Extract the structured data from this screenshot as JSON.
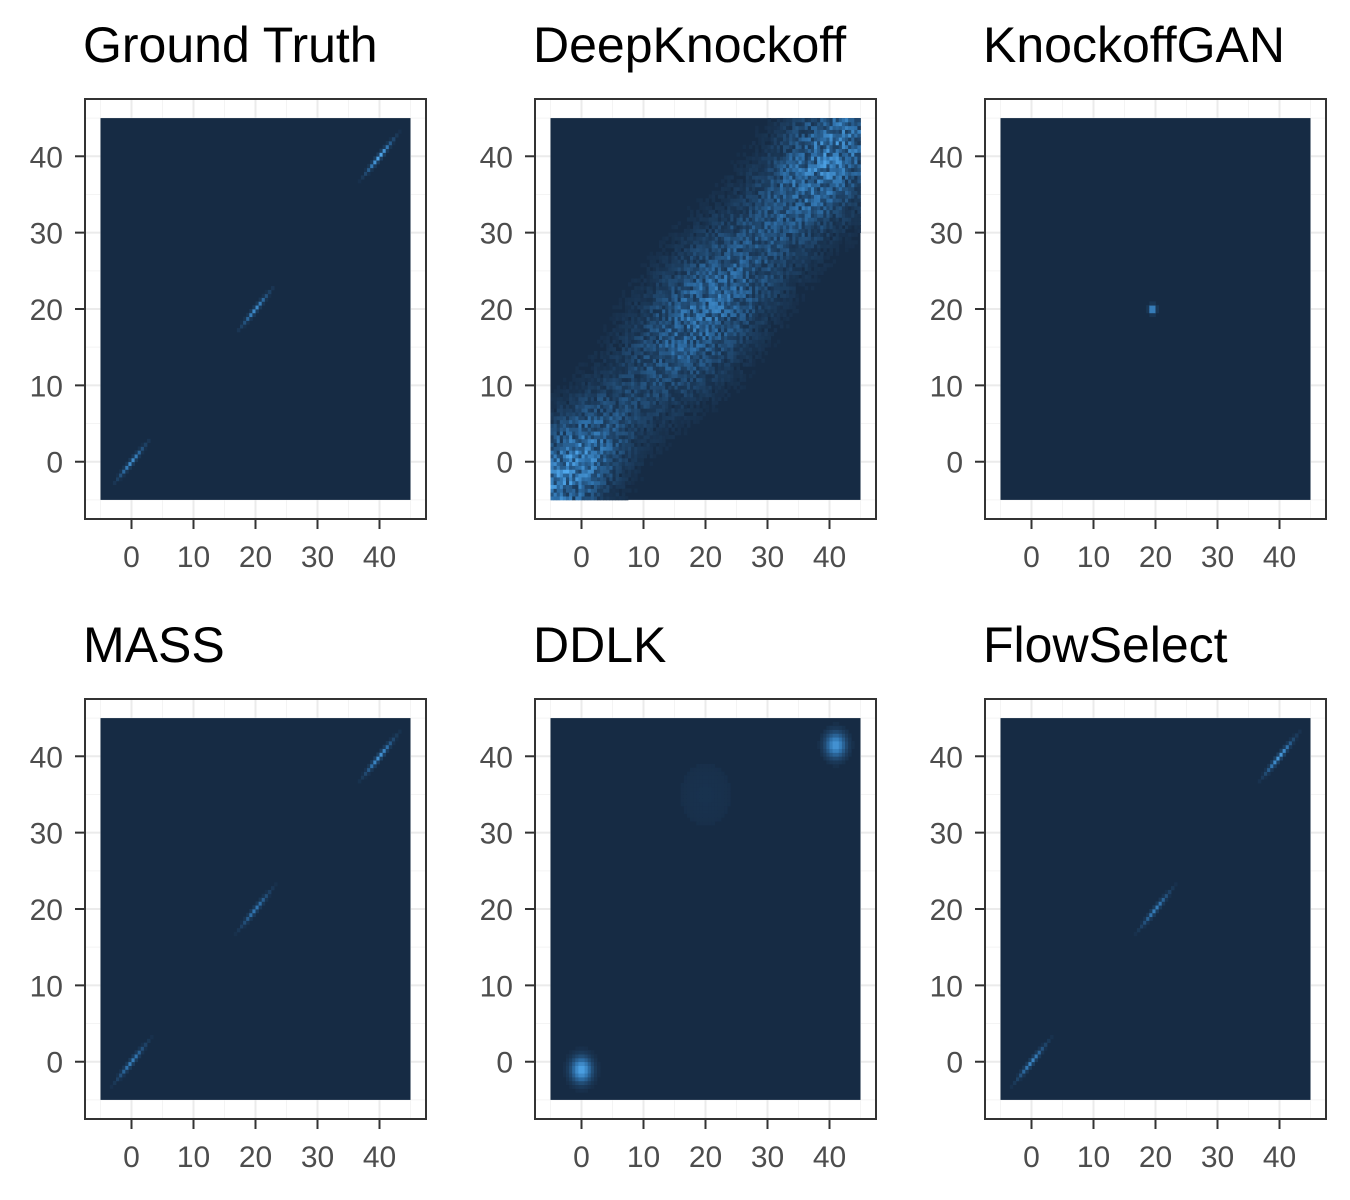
{
  "colors": {
    "background": "#162b44",
    "density_mid": "#2e6fa8",
    "density_high": "#56b1f7",
    "frame": "#333333",
    "grid_major": "#ebebeb",
    "grid_minor": "#f4f4f4",
    "tick_text": "#4d4d4d"
  },
  "chart_data": [
    {
      "type": "heatmap",
      "title": "Ground Truth",
      "xlim": [
        -5,
        45
      ],
      "ylim": [
        -5,
        45
      ],
      "xticks": [
        0,
        10,
        20,
        30,
        40
      ],
      "yticks": [
        0,
        10,
        20,
        30,
        40
      ],
      "xticklabels": [
        "0",
        "10",
        "20",
        "30",
        "40"
      ],
      "yticklabels": [
        "0",
        "10",
        "20",
        "30",
        "40"
      ],
      "grid": true,
      "density_modes": [
        {
          "x": 0,
          "y": 0,
          "sd": 1.3,
          "rho": 0.98,
          "peak": 0.7
        },
        {
          "x": 20,
          "y": 20,
          "sd": 1.3,
          "rho": 0.98,
          "peak": 0.7
        },
        {
          "x": 40,
          "y": 40,
          "sd": 1.3,
          "rho": 0.98,
          "peak": 0.9
        }
      ]
    },
    {
      "type": "heatmap",
      "title": "DeepKnockoff",
      "xlim": [
        -5,
        45
      ],
      "ylim": [
        -5,
        45
      ],
      "xticks": [
        0,
        10,
        20,
        30,
        40
      ],
      "yticks": [
        0,
        10,
        20,
        30,
        40
      ],
      "xticklabels": [
        "0",
        "10",
        "20",
        "30",
        "40"
      ],
      "yticklabels": [
        "0",
        "10",
        "20",
        "30",
        "40"
      ],
      "grid": true,
      "density_modes": [
        {
          "x": -2,
          "y": -1,
          "sd": 5.5,
          "rho": 0.55,
          "peak": 0.55
        },
        {
          "x": 20,
          "y": 20,
          "sd": 8.0,
          "rho": 0.65,
          "peak": 0.4
        },
        {
          "x": 40,
          "y": 40,
          "sd": 6.5,
          "rho": 0.55,
          "peak": 0.5
        }
      ],
      "noise": true
    },
    {
      "type": "heatmap",
      "title": "KnockoffGAN",
      "xlim": [
        -5,
        45
      ],
      "ylim": [
        -5,
        45
      ],
      "xticks": [
        0,
        10,
        20,
        30,
        40
      ],
      "yticks": [
        0,
        10,
        20,
        30,
        40
      ],
      "xticklabels": [
        "0",
        "10",
        "20",
        "30",
        "40"
      ],
      "yticklabels": [
        "0",
        "10",
        "20",
        "30",
        "40"
      ],
      "grid": true,
      "density_modes": [
        {
          "x": 19.5,
          "y": 20,
          "sd": 0.35,
          "rho": 0.0,
          "peak": 1.0
        }
      ]
    },
    {
      "type": "heatmap",
      "title": "MASS",
      "xlim": [
        -5,
        45
      ],
      "ylim": [
        -5,
        45
      ],
      "xticks": [
        0,
        10,
        20,
        30,
        40
      ],
      "yticks": [
        0,
        10,
        20,
        30,
        40
      ],
      "xticklabels": [
        "0",
        "10",
        "20",
        "30",
        "40"
      ],
      "yticklabels": [
        "0",
        "10",
        "20",
        "30",
        "40"
      ],
      "grid": true,
      "density_modes": [
        {
          "x": 0,
          "y": 0,
          "sd": 1.4,
          "rho": 0.98,
          "peak": 0.6
        },
        {
          "x": 20,
          "y": 20,
          "sd": 1.4,
          "rho": 0.98,
          "peak": 0.55
        },
        {
          "x": 40,
          "y": 40,
          "sd": 1.4,
          "rho": 0.98,
          "peak": 0.75
        }
      ]
    },
    {
      "type": "heatmap",
      "title": "DDLK",
      "xlim": [
        -5,
        45
      ],
      "ylim": [
        -5,
        45
      ],
      "xticks": [
        0,
        10,
        20,
        30,
        40
      ],
      "yticks": [
        0,
        10,
        20,
        30,
        40
      ],
      "xticklabels": [
        "0",
        "10",
        "20",
        "30",
        "40"
      ],
      "yticklabels": [
        "0",
        "10",
        "20",
        "30",
        "40"
      ],
      "grid": true,
      "density_modes": [
        {
          "x": 0,
          "y": -1,
          "sd": 1.1,
          "rho": 0.0,
          "peak": 0.9
        },
        {
          "x": 41,
          "y": 41.5,
          "sd": 1.1,
          "rho": 0.0,
          "peak": 0.8
        },
        {
          "x": 20,
          "y": 35,
          "sd": 4.0,
          "rho": 0.0,
          "peak": 0.05
        }
      ]
    },
    {
      "type": "heatmap",
      "title": "FlowSelect",
      "xlim": [
        -5,
        45
      ],
      "ylim": [
        -5,
        45
      ],
      "xticks": [
        0,
        10,
        20,
        30,
        40
      ],
      "yticks": [
        0,
        10,
        20,
        30,
        40
      ],
      "xticklabels": [
        "0",
        "10",
        "20",
        "30",
        "40"
      ],
      "yticklabels": [
        "0",
        "10",
        "20",
        "30",
        "40"
      ],
      "grid": true,
      "density_modes": [
        {
          "x": 0,
          "y": 0,
          "sd": 1.4,
          "rho": 0.98,
          "peak": 0.65
        },
        {
          "x": 20,
          "y": 20,
          "sd": 1.4,
          "rho": 0.98,
          "peak": 0.6
        },
        {
          "x": 40,
          "y": 40,
          "sd": 1.4,
          "rho": 0.98,
          "peak": 0.8
        }
      ]
    }
  ]
}
